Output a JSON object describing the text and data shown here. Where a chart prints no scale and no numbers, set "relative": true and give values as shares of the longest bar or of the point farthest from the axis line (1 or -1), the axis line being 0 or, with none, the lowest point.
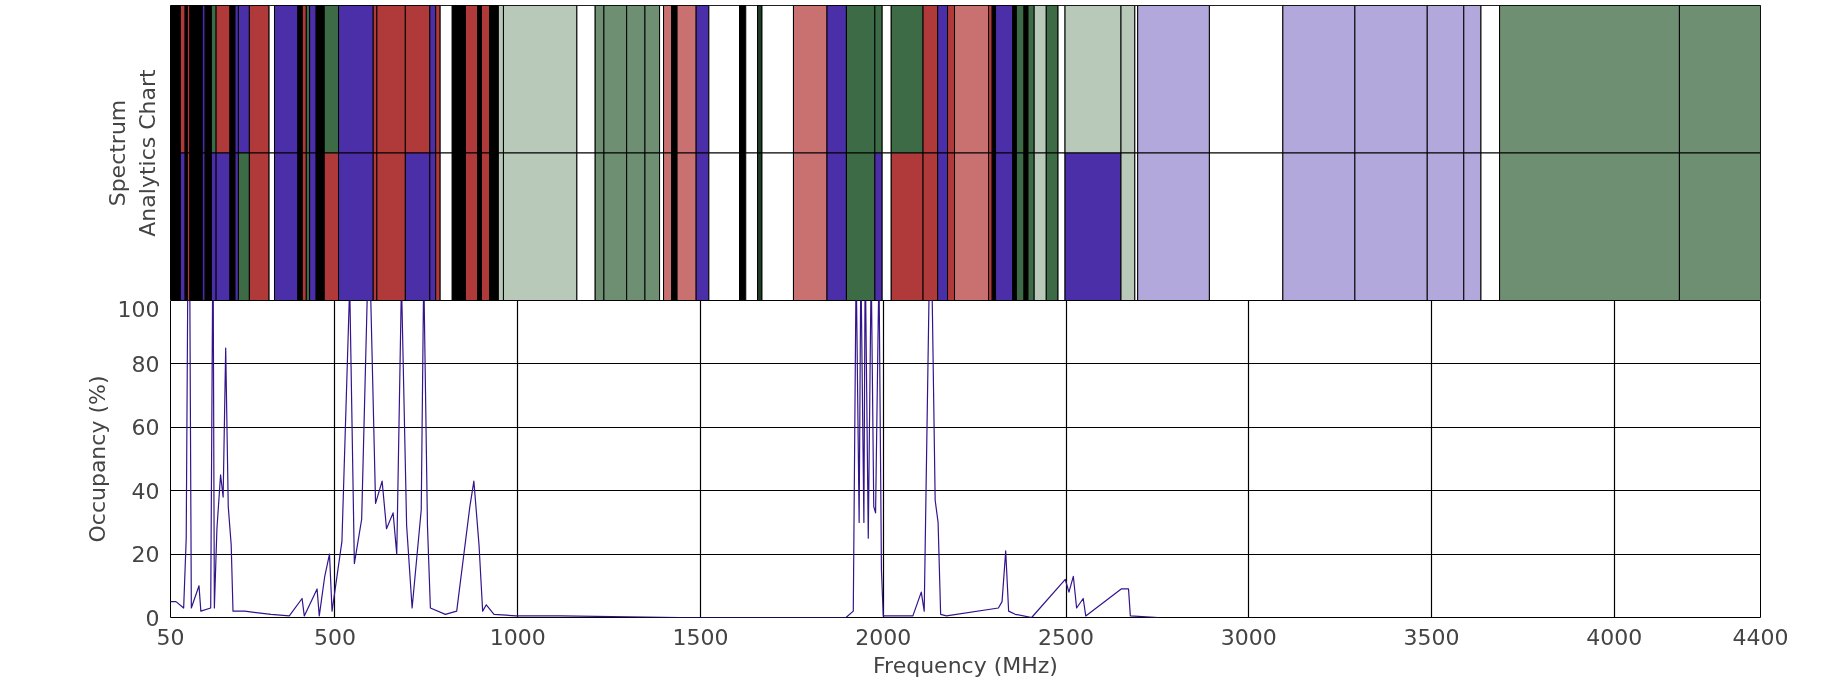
{
  "chart_data": [
    {
      "type": "bar",
      "orientation": "horizontal",
      "stacked": true,
      "relative": true,
      "ylabel": "Spectrum\nAnalytics Chart",
      "tick_labels": false,
      "categories": [
        null,
        null
      ],
      "series": [
        {
          "color": "#000000",
          "values": [
            0.0062,
            0.0062
          ]
        },
        {
          "colors": [
            "#b03a3a",
            "#4b2fa8"
          ],
          "values": [
            0.003,
            0.003
          ]
        },
        {
          "color": "#000000",
          "values": [
            0.0014,
            0.0014
          ]
        },
        {
          "color": "#b03a3a",
          "values": [
            0.0016,
            0.0016
          ]
        },
        {
          "color": "#000000",
          "values": [
            0.0078,
            0.0078
          ]
        },
        {
          "color": "#4b2fa8",
          "values": [
            0.0018,
            0.0018
          ]
        },
        {
          "color": "#000000",
          "values": [
            0.0039,
            0.0039
          ]
        },
        {
          "colors": [
            "#3d6b45",
            "#4b2fa8"
          ],
          "values": [
            0.003,
            0.003
          ]
        },
        {
          "colors": [
            "#b03a3a",
            "#4b2fa8"
          ],
          "values": [
            0.0087,
            0.0087
          ]
        },
        {
          "color": "#000000",
          "values": [
            0.0032,
            0.0032
          ]
        },
        {
          "color": "#4b2fa8",
          "values": [
            0.0021,
            0.0021
          ]
        },
        {
          "colors": [
            "#4b2fa8",
            "#3d6b45"
          ],
          "values": [
            0.0069,
            0.0069
          ]
        },
        {
          "color": "#b03a3a",
          "values": [
            0.0124,
            0.0124
          ]
        },
        {
          "color": "#ffffff",
          "values": [
            0.0034,
            0.0034
          ]
        },
        {
          "color": "#4b2fa8",
          "values": [
            0.0147,
            0.0147
          ]
        },
        {
          "color": "#000000",
          "values": [
            0.0028,
            0.0028
          ]
        },
        {
          "color": "#b03a3a",
          "values": [
            0.0025,
            0.0025
          ]
        },
        {
          "color": "#3d6b45",
          "values": [
            0.0021,
            0.0021
          ]
        },
        {
          "color": "#4b2fa8",
          "values": [
            0.0041,
            0.0041
          ]
        },
        {
          "color": "#000000",
          "values": [
            0.0051,
            0.0051
          ]
        },
        {
          "colors": [
            "#3d6b45",
            "#b03a3a"
          ],
          "values": [
            0.009,
            0.009
          ]
        },
        {
          "color": "#4b2fa8",
          "values": [
            0.0218,
            0.0218
          ]
        },
        {
          "color": "#b03a3a",
          "values": [
            0.0023,
            0.0023
          ]
        },
        {
          "color": "#b03a3a",
          "values": [
            0.0179,
            0.0179
          ]
        },
        {
          "colors": [
            "#b03a3a",
            "#4b2fa8"
          ],
          "values": [
            0.0154,
            0.0154
          ]
        },
        {
          "color": "#4b2fa8",
          "values": [
            0.0037,
            0.0037
          ]
        },
        {
          "color": "#b03a3a",
          "values": [
            0.0028,
            0.0028
          ]
        },
        {
          "color": "#ffffff",
          "values": [
            0.0076,
            0.0076
          ]
        },
        {
          "color": "#000000",
          "values": [
            0.0083,
            0.0083
          ]
        },
        {
          "color": "#b03a3a",
          "values": [
            0.0076,
            0.0076
          ]
        },
        {
          "color": "#000000",
          "values": [
            0.0025,
            0.0025
          ]
        },
        {
          "color": "#b03a3a",
          "values": [
            0.0051,
            0.0051
          ]
        },
        {
          "color": "#000000",
          "values": [
            0.0055,
            0.0055
          ]
        },
        {
          "color": "#b9c9b9",
          "values": [
            0.0032,
            0.0032
          ]
        },
        {
          "color": "#b9c9b9",
          "values": [
            0.0462,
            0.0462
          ]
        },
        {
          "color": "#ffffff",
          "values": [
            0.0115,
            0.0115
          ]
        },
        {
          "color": "#6f8f73",
          "values": [
            0.0055,
            0.0055
          ]
        },
        {
          "color": "#6f8f73",
          "values": [
            0.0143,
            0.0143
          ]
        },
        {
          "color": "#6f8f73",
          "values": [
            0.0115,
            0.0115
          ]
        },
        {
          "color": "#6f8f73",
          "values": [
            0.0092,
            0.0092
          ]
        },
        {
          "color": "#ffffff",
          "values": [
            0.0025,
            0.0025
          ]
        },
        {
          "color": "#c97070",
          "values": [
            0.0051,
            0.0051
          ]
        },
        {
          "color": "#000000",
          "values": [
            0.0034,
            0.0034
          ]
        },
        {
          "color": "#c97070",
          "values": [
            0.012,
            0.012
          ]
        },
        {
          "color": "#4b2fa8",
          "values": [
            0.008,
            0.008
          ]
        },
        {
          "color": "#ffffff",
          "values": [
            0.0193,
            0.0193
          ]
        },
        {
          "color": "#000000",
          "values": [
            0.0039,
            0.0039
          ]
        },
        {
          "color": "#ffffff",
          "values": [
            0.0074,
            0.0074
          ]
        },
        {
          "color": "#1f3d24",
          "values": [
            0.0028,
            0.0028
          ]
        },
        {
          "color": "#ffffff",
          "values": [
            0.0198,
            0.0198
          ]
        },
        {
          "color": "#c97070",
          "values": [
            0.0211,
            0.0211
          ]
        },
        {
          "color": "#4b2fa8",
          "values": [
            0.0122,
            0.0122
          ]
        },
        {
          "color": "#3d6b45",
          "values": [
            0.0179,
            0.0179
          ]
        },
        {
          "colors": [
            "#3d6b45",
            "#4b2fa8"
          ],
          "values": [
            0.0046,
            0.0046
          ]
        },
        {
          "color": "#ffffff",
          "values": [
            0.0057,
            0.0057
          ]
        },
        {
          "colors": [
            "#3d6b45",
            "#b03a3a"
          ],
          "values": [
            0.02,
            0.02
          ]
        },
        {
          "color": "#b03a3a",
          "values": [
            0.0092,
            0.0092
          ]
        },
        {
          "color": "#4b2fa8",
          "values": [
            0.0062,
            0.0062
          ]
        },
        {
          "color": "#b03a3a",
          "values": [
            0.0044,
            0.0044
          ]
        },
        {
          "color": "#c97070",
          "values": [
            0.0214,
            0.0214
          ]
        },
        {
          "color": "#b03a3a",
          "values": [
            0.0023,
            0.0023
          ]
        },
        {
          "color": "#000000",
          "values": [
            0.0021,
            0.0021
          ]
        },
        {
          "color": "#4b2fa8",
          "values": [
            0.0108,
            0.0108
          ]
        },
        {
          "color": "#000000",
          "values": [
            0.0023,
            0.0023
          ]
        },
        {
          "color": "#3d6b45",
          "values": [
            0.0048,
            0.0048
          ]
        },
        {
          "color": "#000000",
          "values": [
            0.0025,
            0.0025
          ]
        },
        {
          "color": "#3d6b45",
          "values": [
            0.0039,
            0.0039
          ]
        },
        {
          "color": "#b9c9b9",
          "values": [
            0.0076,
            0.0076
          ]
        },
        {
          "color": "#3d6b45",
          "values": [
            0.0074,
            0.0074
          ]
        },
        {
          "color": "#ffffff",
          "values": [
            0.0044,
            0.0044
          ]
        },
        {
          "colors": [
            "#b9c9b9",
            "#4b2fa8"
          ],
          "values": [
            0.0352,
            0.0352
          ]
        },
        {
          "color": "#b9c9b9",
          "values": [
            0.0087,
            0.0087
          ]
        },
        {
          "color": "#ffffff",
          "values": [
            0.0018,
            0.0018
          ]
        },
        {
          "color": "#b3a8dc",
          "values": [
            0.0451,
            0.0451
          ]
        },
        {
          "color": "#ffffff",
          "values": [
            0.0462,
            0.0462
          ]
        },
        {
          "color": "#b3a8dc",
          "values": [
            0.0453,
            0.0453
          ]
        },
        {
          "color": "#b3a8dc",
          "values": [
            0.0455,
            0.0455
          ]
        },
        {
          "color": "#b3a8dc",
          "values": [
            0.023,
            0.023
          ]
        },
        {
          "color": "#b3a8dc",
          "values": [
            0.0108,
            0.0108
          ]
        },
        {
          "color": "#ffffff",
          "values": [
            0.0117,
            0.0117
          ]
        },
        {
          "color": "#6f8f73",
          "values": [
            0.1131,
            0.1131
          ]
        },
        {
          "color": "#6f8f73",
          "values": [
            0.051,
            0.051
          ]
        }
      ]
    },
    {
      "type": "line",
      "xlabel": "Frequency (MHz)",
      "ylabel": "Occupancy (%)",
      "xlim": [
        50,
        4400
      ],
      "ylim": [
        0,
        100
      ],
      "xticks": [
        50,
        500,
        1000,
        1500,
        2000,
        2500,
        3000,
        3500,
        4000,
        4400
      ],
      "yticks": [
        0,
        20,
        40,
        60,
        80,
        100
      ],
      "grid": true,
      "series": [
        {
          "color": "#33148c",
          "x": [
            50,
            65,
            86,
            93,
            97,
            103,
            107,
            128,
            133,
            160,
            165,
            167,
            170,
            177,
            187,
            194,
            201,
            208,
            216,
            221,
            253,
            325,
            375,
            410,
            416,
            451,
            457,
            472,
            485,
            492,
            519,
            539,
            541,
            553,
            573,
            588,
            598,
            611,
            629,
            641,
            659,
            669,
            681,
            683,
            696,
            711,
            736,
            742,
            744,
            753,
            761,
            802,
            833,
            869,
            880,
            894,
            904,
            914,
            935,
            996,
            1118,
            1443,
            1898,
            1918,
            1925,
            1927,
            1934,
            1938,
            1940,
            1947,
            1950,
            1952,
            1959,
            1966,
            1968,
            1974,
            1979,
            1987,
            1989,
            1995,
            2000,
            2081,
            2104,
            2112,
            2125,
            2134,
            2142,
            2150,
            2157,
            2173,
            2315,
            2325,
            2335,
            2343,
            2361,
            2406,
            2498,
            2508,
            2520,
            2529,
            2547,
            2554,
            2651,
            2671,
            2676,
            2752
          ],
          "values": [
            5,
            5,
            3,
            25,
            100,
            100,
            3,
            10,
            2,
            3,
            100,
            100,
            3,
            28,
            45,
            38,
            85,
            35,
            23,
            2,
            2,
            1,
            0.5,
            6,
            0.5,
            9,
            0.5,
            13,
            20,
            2,
            24,
            100,
            100,
            17,
            31,
            100,
            100,
            36,
            43,
            28,
            33,
            20,
            100,
            100,
            29,
            3,
            34,
            100,
            100,
            29,
            3,
            1,
            2,
            35,
            43,
            23,
            2,
            4,
            1,
            0.5,
            0.5,
            0,
            0,
            2,
            100,
            100,
            30,
            100,
            100,
            30,
            100,
            100,
            25,
            100,
            100,
            35,
            33,
            100,
            100,
            15,
            0.5,
            0.5,
            8,
            2,
            100,
            100,
            37,
            30,
            1,
            0.5,
            3,
            5,
            21,
            2,
            1,
            0,
            12,
            8,
            13,
            3,
            6,
            0.5,
            9,
            9,
            0.5,
            0
          ]
        }
      ]
    }
  ]
}
